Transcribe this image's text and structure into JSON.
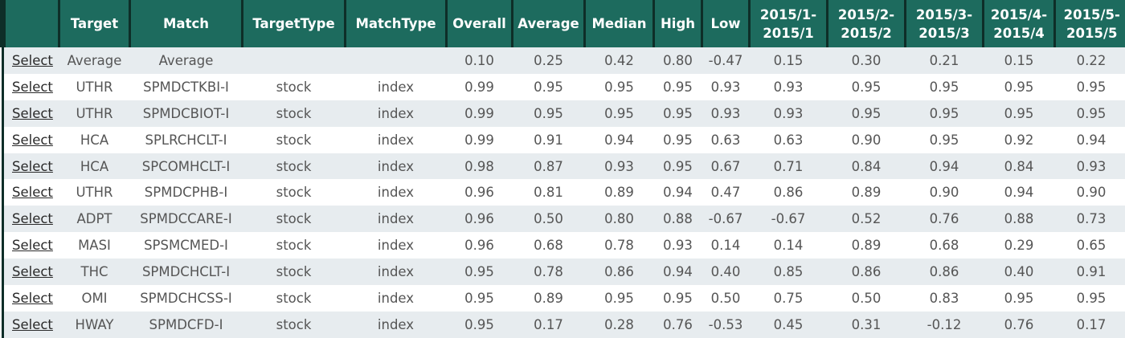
{
  "headers": [
    "",
    "Target",
    "Match",
    "TargetType",
    "MatchType",
    "Overall",
    "Average",
    "Median",
    "High",
    "Low",
    "2015/1-\n2015/1",
    "2015/2-\n2015/2",
    "2015/3-\n2015/3",
    "2015/4-\n2015/4",
    "2015/5-\n2015/5"
  ],
  "select_label": "Select",
  "rows": [
    {
      "target": "Average",
      "match": "Average",
      "target_type": "",
      "match_type": "",
      "overall": "0.10",
      "average": "0.25",
      "median": "0.42",
      "high": "0.80",
      "low": "-0.47",
      "m1": "0.15",
      "m2": "0.30",
      "m3": "0.21",
      "m4": "0.15",
      "m5": "0.22"
    },
    {
      "target": "UTHR",
      "match": "SPMDCTKBI-I",
      "target_type": "stock",
      "match_type": "index",
      "overall": "0.99",
      "average": "0.95",
      "median": "0.95",
      "high": "0.95",
      "low": "0.93",
      "m1": "0.93",
      "m2": "0.95",
      "m3": "0.95",
      "m4": "0.95",
      "m5": "0.95"
    },
    {
      "target": "UTHR",
      "match": "SPMDCBIOT-I",
      "target_type": "stock",
      "match_type": "index",
      "overall": "0.99",
      "average": "0.95",
      "median": "0.95",
      "high": "0.95",
      "low": "0.93",
      "m1": "0.93",
      "m2": "0.95",
      "m3": "0.95",
      "m4": "0.95",
      "m5": "0.95"
    },
    {
      "target": "HCA",
      "match": "SPLRCHCLT-I",
      "target_type": "stock",
      "match_type": "index",
      "overall": "0.99",
      "average": "0.91",
      "median": "0.94",
      "high": "0.95",
      "low": "0.63",
      "m1": "0.63",
      "m2": "0.90",
      "m3": "0.95",
      "m4": "0.92",
      "m5": "0.94"
    },
    {
      "target": "HCA",
      "match": "SPCOMHCLT-I",
      "target_type": "stock",
      "match_type": "index",
      "overall": "0.98",
      "average": "0.87",
      "median": "0.93",
      "high": "0.95",
      "low": "0.67",
      "m1": "0.71",
      "m2": "0.84",
      "m3": "0.94",
      "m4": "0.84",
      "m5": "0.93"
    },
    {
      "target": "UTHR",
      "match": "SPMDCPHB-I",
      "target_type": "stock",
      "match_type": "index",
      "overall": "0.96",
      "average": "0.81",
      "median": "0.89",
      "high": "0.94",
      "low": "0.47",
      "m1": "0.86",
      "m2": "0.89",
      "m3": "0.90",
      "m4": "0.94",
      "m5": "0.90"
    },
    {
      "target": "ADPT",
      "match": "SPMDCCARE-I",
      "target_type": "stock",
      "match_type": "index",
      "overall": "0.96",
      "average": "0.50",
      "median": "0.80",
      "high": "0.88",
      "low": "-0.67",
      "m1": "-0.67",
      "m2": "0.52",
      "m3": "0.76",
      "m4": "0.88",
      "m5": "0.73"
    },
    {
      "target": "MASI",
      "match": "SPSMCMED-I",
      "target_type": "stock",
      "match_type": "index",
      "overall": "0.96",
      "average": "0.68",
      "median": "0.78",
      "high": "0.93",
      "low": "0.14",
      "m1": "0.14",
      "m2": "0.89",
      "m3": "0.68",
      "m4": "0.29",
      "m5": "0.65"
    },
    {
      "target": "THC",
      "match": "SPMDCHCLT-I",
      "target_type": "stock",
      "match_type": "index",
      "overall": "0.95",
      "average": "0.78",
      "median": "0.86",
      "high": "0.94",
      "low": "0.40",
      "m1": "0.85",
      "m2": "0.86",
      "m3": "0.86",
      "m4": "0.40",
      "m5": "0.91"
    },
    {
      "target": "OMI",
      "match": "SPMDCHCSS-I",
      "target_type": "stock",
      "match_type": "index",
      "overall": "0.95",
      "average": "0.89",
      "median": "0.95",
      "high": "0.95",
      "low": "0.50",
      "m1": "0.75",
      "m2": "0.50",
      "m3": "0.83",
      "m4": "0.95",
      "m5": "0.95"
    },
    {
      "target": "HWAY",
      "match": "SPMDCFD-I",
      "target_type": "stock",
      "match_type": "index",
      "overall": "0.95",
      "average": "0.17",
      "median": "0.28",
      "high": "0.76",
      "low": "-0.53",
      "m1": "0.45",
      "m2": "0.31",
      "m3": "-0.12",
      "m4": "0.76",
      "m5": "0.17"
    }
  ],
  "colors": {
    "header_bg": "#1d6b5e",
    "header_text": "#ffffff",
    "row_alt": "#e7ecef",
    "row": "#ffffff",
    "border": "#0e2e28"
  }
}
